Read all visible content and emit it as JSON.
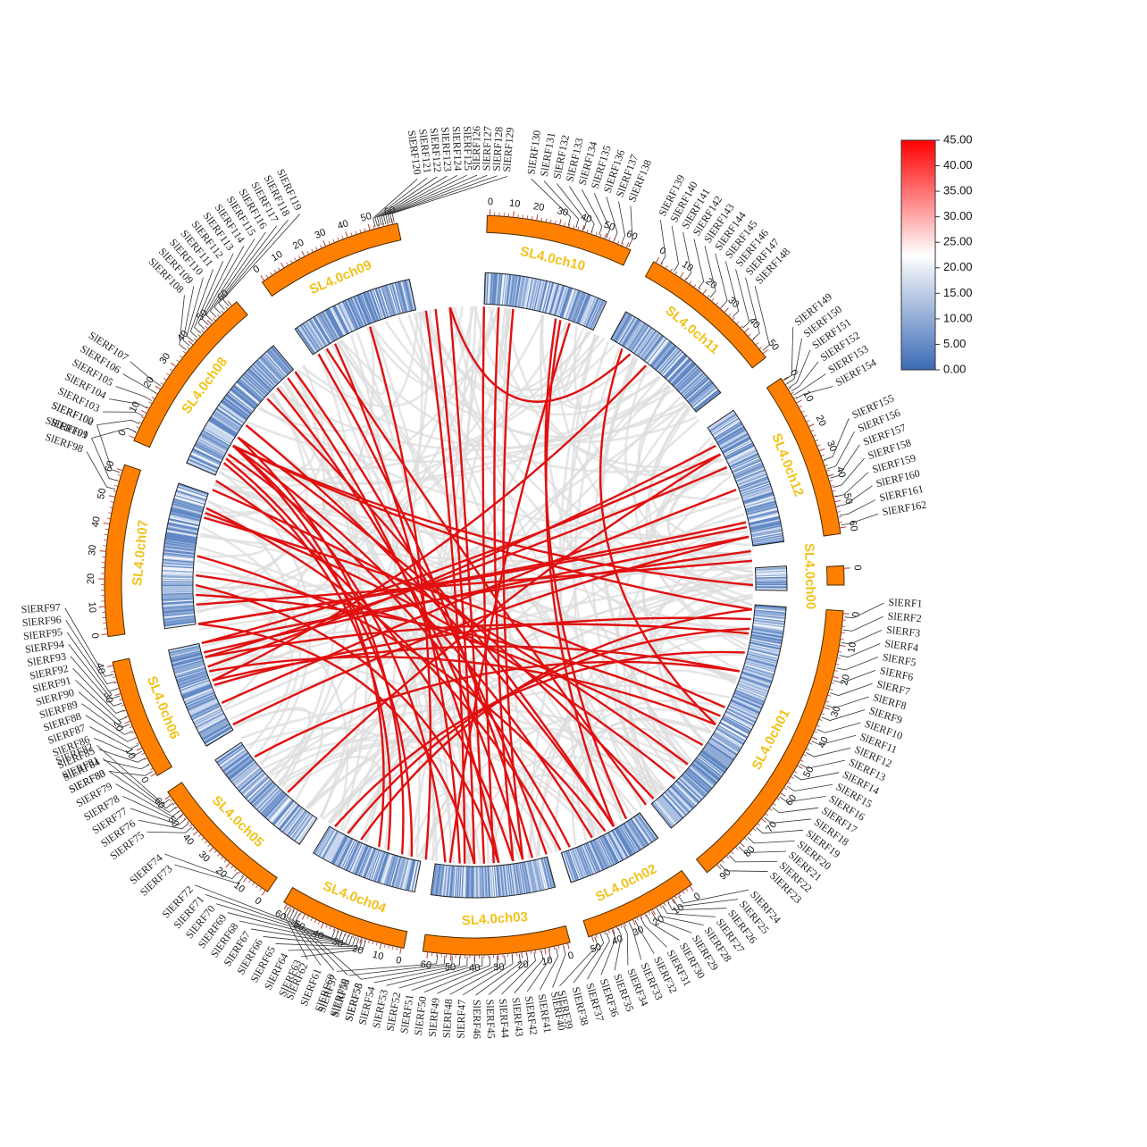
{
  "colors": {
    "chromosome": "#ff8000",
    "chromosome_stroke": "#4a2a00",
    "tick": "#c0392b",
    "label": "#f2c21b",
    "synteny_red": "#e01010",
    "synteny_grey": "#dcdcdc",
    "density_low": "#3a6ab5",
    "density_mid": "#ffffff",
    "density_high": "#ff0000"
  },
  "legend": {
    "ticks": [
      "45.00",
      "40.00",
      "35.00",
      "30.00",
      "25.00",
      "20.00",
      "15.00",
      "10.00",
      "5.00",
      "0.00"
    ],
    "min": 0,
    "max": 45
  },
  "chromosomes": [
    {
      "id": "SL4.0ch01",
      "label": "SL4.0ch01",
      "tick_labels": [
        "0",
        "10",
        "20",
        "30",
        "40",
        "50",
        "60",
        "70",
        "80",
        "90"
      ]
    },
    {
      "id": "SL4.0ch02",
      "label": "SL4.0ch02",
      "tick_labels": [
        "0",
        "10",
        "20",
        "30",
        "40",
        "50"
      ]
    },
    {
      "id": "SL4.0ch03",
      "label": "SL4.0ch03",
      "tick_labels": [
        "0",
        "10",
        "20",
        "30",
        "40",
        "50",
        "60"
      ]
    },
    {
      "id": "SL4.0ch04",
      "label": "SL4.0ch04",
      "tick_labels": [
        "0",
        "10",
        "20",
        "30",
        "40",
        "50",
        "60"
      ]
    },
    {
      "id": "SL4.0ch05",
      "label": "SL4.0ch05",
      "tick_labels": [
        "0",
        "10",
        "20",
        "30",
        "40",
        "50",
        "60"
      ]
    },
    {
      "id": "SL4.0ch06",
      "label": "SL4.0ch06",
      "tick_labels": [
        "0",
        "10",
        "20",
        "30",
        "40"
      ]
    },
    {
      "id": "SL4.0ch07",
      "label": "SL4.0ch07",
      "tick_labels": [
        "0",
        "10",
        "20",
        "30",
        "40",
        "50",
        "60"
      ]
    },
    {
      "id": "SL4.0ch08",
      "label": "SL4.0ch08",
      "tick_labels": [
        "0",
        "10",
        "20",
        "30",
        "40",
        "50",
        "60"
      ]
    },
    {
      "id": "SL4.0ch09",
      "label": "SL4.0ch09",
      "tick_labels": [
        "0",
        "10",
        "20",
        "30",
        "40",
        "50",
        "60"
      ]
    },
    {
      "id": "SL4.0ch10",
      "label": "SL4.0ch10",
      "tick_labels": [
        "0",
        "10",
        "20",
        "30",
        "40",
        "50",
        "60"
      ]
    },
    {
      "id": "SL4.0ch11",
      "label": "SL4.0ch11",
      "tick_labels": [
        "0",
        "10",
        "20",
        "30",
        "40",
        "50"
      ]
    },
    {
      "id": "SL4.0ch12",
      "label": "SL4.0ch12",
      "tick_labels": [
        "0",
        "10",
        "20",
        "30",
        "40",
        "50",
        "60"
      ]
    },
    {
      "id": "SL4.0ch00",
      "label": "SL4.0ch00",
      "tick_labels": [
        "0"
      ]
    }
  ],
  "genes": [
    "SlERF1",
    "SlERF2",
    "SlERF3",
    "SlERF4",
    "SlERF5",
    "SlERF6",
    "SlERF7",
    "SlERF8",
    "SlERF9",
    "SlERF10",
    "SlERF11",
    "SlERF12",
    "SlERF13",
    "SlERF14",
    "SlERF15",
    "SlERF16",
    "SlERF17",
    "SlERF18",
    "SlERF19",
    "SlERF20",
    "SlERF21",
    "SlERF22",
    "SlERF23",
    "SlERF24",
    "SlERF25",
    "SlERF26",
    "SlERF27",
    "SlERF28",
    "SlERF29",
    "SlERF30",
    "SlERF31",
    "SlERF32",
    "SlERF33",
    "SlERF34",
    "SlERF35",
    "SlERF36",
    "SlERF37",
    "SlERF38",
    "SlERF39",
    "SlERF40",
    "SlERF41",
    "SlERF42",
    "SlERF43",
    "SlERF44",
    "SlERF45",
    "SlERF46",
    "SlERF47",
    "SlERF48",
    "SlERF49",
    "SlERF50",
    "SlERF51",
    "SlERF52",
    "SlERF53",
    "SlERF54",
    "SlERF55",
    "SlERF56",
    "SlERF57",
    "SlERF58",
    "SlERF59",
    "SlERF60",
    "SlERF61",
    "SlERF62",
    "SlERF63",
    "SlERF64",
    "SlERF65",
    "SlERF66",
    "SlERF67",
    "SlERF68",
    "SlERF69",
    "SlERF70",
    "SlERF71",
    "SlERF72",
    "SlERF73",
    "SlERF74",
    "SlERF75",
    "SlERF76",
    "SlERF77",
    "SlERF78",
    "SlERF79",
    "SlERF80",
    "SlERF81",
    "SlERF82",
    "SlERF83",
    "SlERF84",
    "SlERF85",
    "SlERF86",
    "SlERF87",
    "SlERF88",
    "SlERF89",
    "SlERF90",
    "SlERF91",
    "SlERF92",
    "SlERF93",
    "SlERF94",
    "SlERF95",
    "SlERF96",
    "SlERF97",
    "SlERF98",
    "SlERF99",
    "SlERF100",
    "SlERF101",
    "SlERF102",
    "SlERF103",
    "SlERF104",
    "SlERF105",
    "SlERF106",
    "SlERF107",
    "SlERF108",
    "SlERF109",
    "SlERF110",
    "SlERF111",
    "SlERF112",
    "SlERF113",
    "SlERF114",
    "SlERF115",
    "SlERF116",
    "SlERF117",
    "SlERF118",
    "SlERF119",
    "SlERF120",
    "SlERF121",
    "SlERF122",
    "SlERF123",
    "SlERF124",
    "SlERF125",
    "SlERF126",
    "SlERF127",
    "SlERF128",
    "SlERF129",
    "SlERF130",
    "SlERF131",
    "SlERF132",
    "SlERF133",
    "SlERF134",
    "SlERF135",
    "SlERF136",
    "SlERF137",
    "SlERF138",
    "SlERF139",
    "SlERF140",
    "SlERF141",
    "SlERF142",
    "SlERF143",
    "SlERF144",
    "SlERF145",
    "SlERF146",
    "SlERF147",
    "SlERF148",
    "SlERF149",
    "SlERF150",
    "SlERF151",
    "SlERF152",
    "SlERF153",
    "SlERF154",
    "SlERF155",
    "SlERF156",
    "SlERF157",
    "SlERF158",
    "SlERF159",
    "SlERF160",
    "SlERF161",
    "SlERF162"
  ]
}
